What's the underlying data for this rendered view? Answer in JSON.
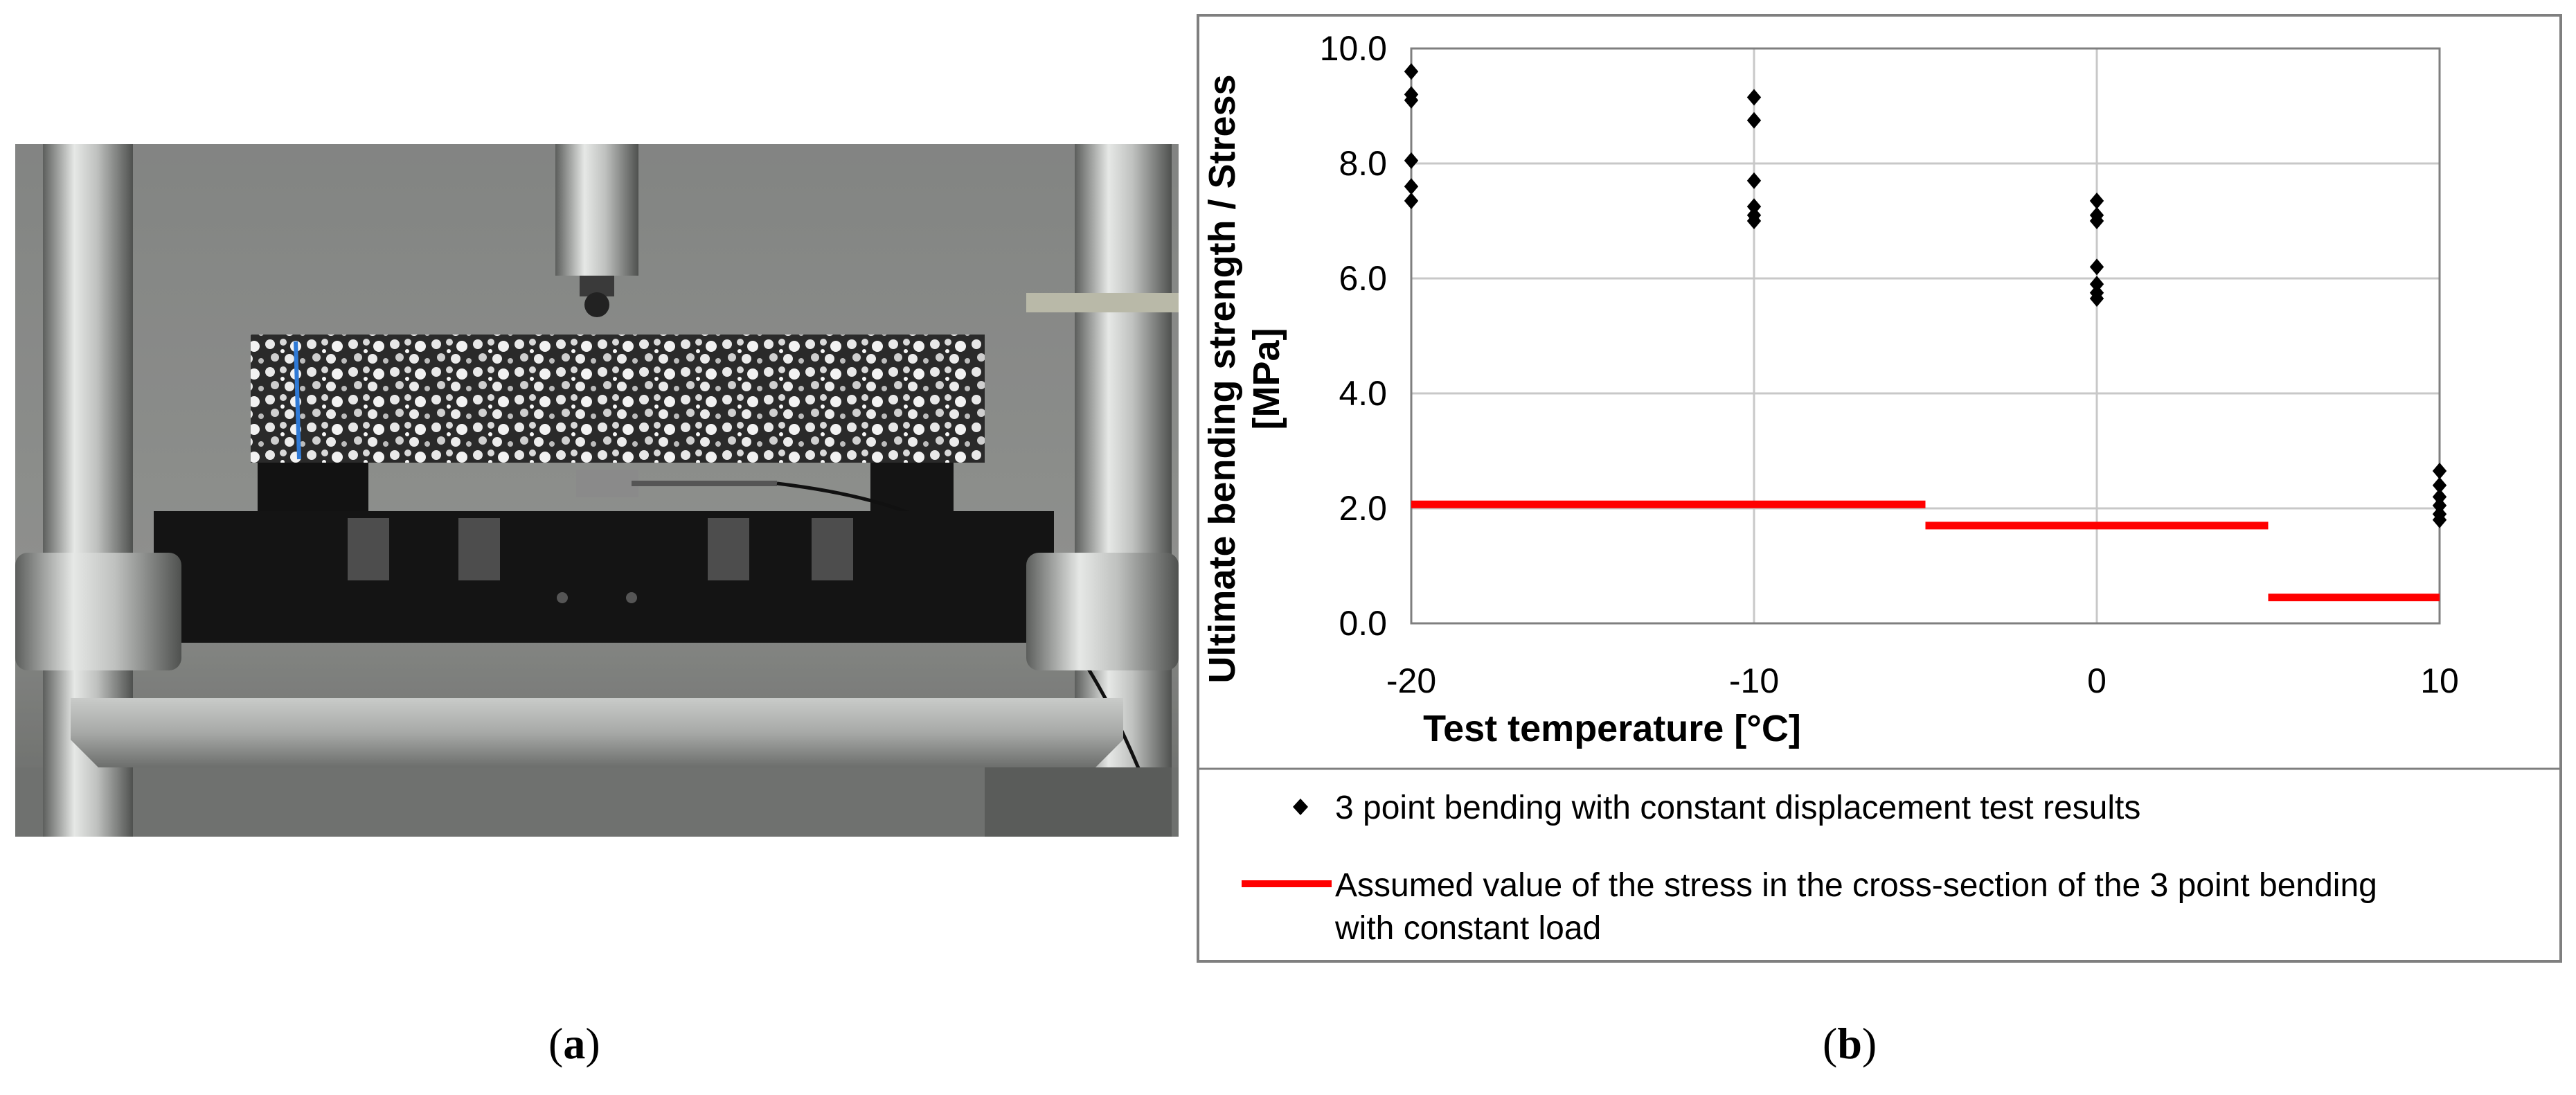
{
  "captions": {
    "a": "a",
    "b": "b"
  },
  "photo": {
    "description_icon": "three-point-bending-test-rig-photo"
  },
  "chart_data": {
    "type": "scatter",
    "xlabel": "Test temperature [°C]",
    "ylabel_line1": "Ultimate bending strength / Stress",
    "ylabel_line2": "[MPa]",
    "xlim": [
      -20,
      10
    ],
    "ylim": [
      0,
      10
    ],
    "xticks": [
      -20,
      -10,
      0,
      10
    ],
    "xtick_labels": [
      "-20",
      "-10",
      "0",
      "10"
    ],
    "yticks": [
      0,
      2,
      4,
      6,
      8,
      10
    ],
    "ytick_labels": [
      "0.0",
      "2.0",
      "4.0",
      "6.0",
      "8.0",
      "10.0"
    ],
    "grid": true,
    "legend_position": "bottom",
    "series": [
      {
        "name": "3 point bending with constant displacement test results",
        "kind": "scatter",
        "color": "#000000",
        "marker": "diamond",
        "points": [
          [
            -20,
            9.6
          ],
          [
            -20,
            9.2
          ],
          [
            -20,
            9.1
          ],
          [
            -20,
            8.05
          ],
          [
            -20,
            7.6
          ],
          [
            -20,
            7.35
          ],
          [
            -10,
            9.15
          ],
          [
            -10,
            8.75
          ],
          [
            -10,
            7.7
          ],
          [
            -10,
            7.25
          ],
          [
            -10,
            7.1
          ],
          [
            -10,
            7.0
          ],
          [
            0,
            7.35
          ],
          [
            0,
            7.1
          ],
          [
            0,
            7.0
          ],
          [
            0,
            6.2
          ],
          [
            0,
            5.9
          ],
          [
            0,
            5.75
          ],
          [
            0,
            5.65
          ],
          [
            10,
            2.65
          ],
          [
            10,
            2.4
          ],
          [
            10,
            2.2
          ],
          [
            10,
            2.05
          ],
          [
            10,
            1.9
          ],
          [
            10,
            1.8
          ]
        ]
      },
      {
        "name": "Assumed value of the stress in the cross-section of the 3 point bending with constant load",
        "kind": "step",
        "color": "#ff0000",
        "segments": [
          {
            "x0": -20,
            "x1": -5,
            "y": 2.07
          },
          {
            "x0": -5,
            "x1": 5,
            "y": 1.7
          },
          {
            "x0": 5,
            "x1": 10,
            "y": 0.45
          }
        ]
      }
    ],
    "legend": [
      {
        "label": "3 point bending with constant displacement test results"
      },
      {
        "label_line1": "Assumed value of the stress in the cross-section of the 3 point bending",
        "label_line2": "with constant load"
      }
    ]
  }
}
